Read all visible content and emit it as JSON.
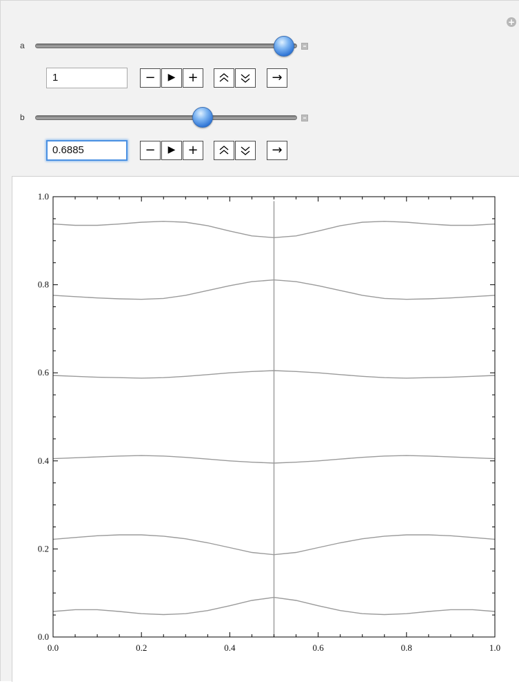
{
  "controls": {
    "a": {
      "label": "a",
      "value": "1",
      "fraction": 1.0
    },
    "b": {
      "label": "b",
      "value": "0.6885",
      "fraction": 0.6885
    },
    "buttons": {
      "decrement": "−",
      "play": "▶",
      "increment": "+",
      "faster": "≈",
      "slower": "≈",
      "direction": "→"
    },
    "icons": {
      "options": "plus-icon",
      "decrement": "minus-icon",
      "play": "play-icon",
      "increment": "plus-icon",
      "faster": "double-chevron-up-icon",
      "slower": "double-chevron-down-icon",
      "direction": "arrow-right-icon",
      "slider_thumb": "slider-thumb",
      "expand": "expand-box-icon"
    },
    "accent_color": "#4a90e2"
  },
  "chart_data": {
    "type": "line",
    "title": "",
    "xlabel": "",
    "ylabel": "",
    "xlim": [
      0,
      1
    ],
    "ylim": [
      0,
      1
    ],
    "x_ticks": [
      "0.0",
      "0.2",
      "0.4",
      "0.6",
      "0.8",
      "1.0"
    ],
    "y_ticks": [
      "0.0",
      "0.2",
      "0.4",
      "0.6",
      "0.8",
      "1.0"
    ],
    "grid": false,
    "line_color": "#9a9a9a",
    "series": [
      {
        "x": [
          0,
          0.05,
          0.1,
          0.15,
          0.2,
          0.25,
          0.3,
          0.35,
          0.4,
          0.45,
          0.5,
          0.55,
          0.6,
          0.65,
          0.7,
          0.75,
          0.8,
          0.85,
          0.9,
          0.95,
          1.0
        ],
        "y": [
          0.058,
          0.062,
          0.062,
          0.058,
          0.053,
          0.051,
          0.053,
          0.06,
          0.071,
          0.083,
          0.09,
          0.083,
          0.071,
          0.06,
          0.053,
          0.051,
          0.053,
          0.058,
          0.062,
          0.062,
          0.058
        ]
      },
      {
        "x": [
          0,
          0.05,
          0.1,
          0.15,
          0.2,
          0.25,
          0.3,
          0.35,
          0.4,
          0.45,
          0.5,
          0.55,
          0.6,
          0.65,
          0.7,
          0.75,
          0.8,
          0.85,
          0.9,
          0.95,
          1.0
        ],
        "y": [
          0.222,
          0.226,
          0.23,
          0.232,
          0.232,
          0.229,
          0.223,
          0.214,
          0.203,
          0.192,
          0.187,
          0.192,
          0.203,
          0.214,
          0.223,
          0.229,
          0.232,
          0.232,
          0.23,
          0.226,
          0.222
        ]
      },
      {
        "x": [
          0,
          0.05,
          0.1,
          0.15,
          0.2,
          0.25,
          0.3,
          0.35,
          0.4,
          0.45,
          0.5,
          0.55,
          0.6,
          0.65,
          0.7,
          0.75,
          0.8,
          0.85,
          0.9,
          0.95,
          1.0
        ],
        "y": [
          0.405,
          0.407,
          0.409,
          0.411,
          0.412,
          0.411,
          0.408,
          0.404,
          0.4,
          0.397,
          0.395,
          0.397,
          0.4,
          0.404,
          0.408,
          0.411,
          0.412,
          0.411,
          0.409,
          0.407,
          0.405
        ]
      },
      {
        "x": [
          0,
          0.05,
          0.1,
          0.15,
          0.2,
          0.25,
          0.3,
          0.35,
          0.4,
          0.45,
          0.5,
          0.55,
          0.6,
          0.65,
          0.7,
          0.75,
          0.8,
          0.85,
          0.9,
          0.95,
          1.0
        ],
        "y": [
          0.594,
          0.592,
          0.59,
          0.589,
          0.588,
          0.589,
          0.592,
          0.596,
          0.6,
          0.603,
          0.605,
          0.603,
          0.6,
          0.596,
          0.592,
          0.589,
          0.588,
          0.589,
          0.59,
          0.592,
          0.594
        ]
      },
      {
        "x": [
          0,
          0.05,
          0.1,
          0.15,
          0.2,
          0.25,
          0.3,
          0.35,
          0.4,
          0.45,
          0.5,
          0.55,
          0.6,
          0.65,
          0.7,
          0.75,
          0.8,
          0.85,
          0.9,
          0.95,
          1.0
        ],
        "y": [
          0.776,
          0.773,
          0.77,
          0.768,
          0.767,
          0.769,
          0.776,
          0.787,
          0.798,
          0.807,
          0.811,
          0.807,
          0.798,
          0.787,
          0.776,
          0.769,
          0.767,
          0.768,
          0.77,
          0.773,
          0.776
        ]
      },
      {
        "x": [
          0,
          0.05,
          0.1,
          0.15,
          0.2,
          0.25,
          0.3,
          0.35,
          0.4,
          0.45,
          0.5,
          0.55,
          0.6,
          0.65,
          0.7,
          0.75,
          0.8,
          0.85,
          0.9,
          0.95,
          1.0
        ],
        "y": [
          0.938,
          0.935,
          0.935,
          0.938,
          0.942,
          0.944,
          0.942,
          0.934,
          0.922,
          0.911,
          0.907,
          0.911,
          0.922,
          0.934,
          0.942,
          0.944,
          0.942,
          0.938,
          0.935,
          0.935,
          0.938
        ]
      },
      {
        "x": [
          0.5,
          0.5
        ],
        "y": [
          0.0,
          0.99
        ]
      }
    ]
  }
}
